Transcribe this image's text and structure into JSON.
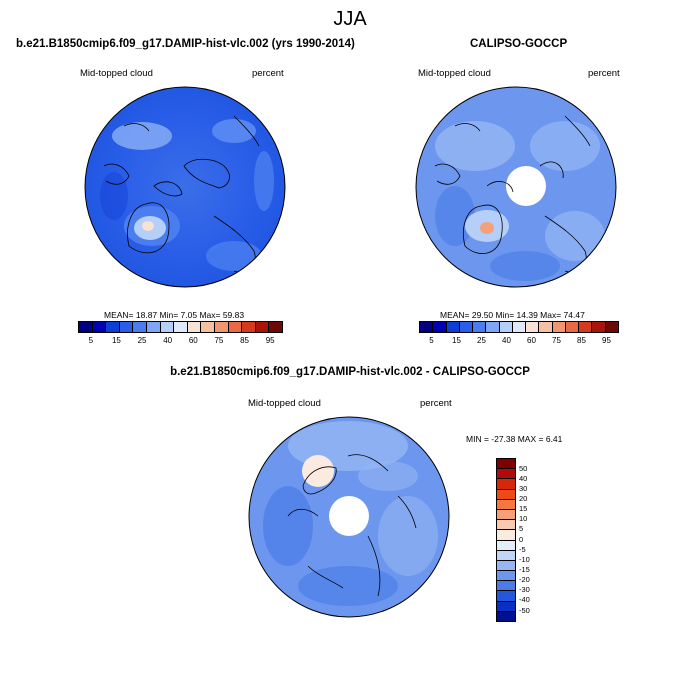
{
  "season": "JJA",
  "colors": {
    "abs": [
      "#000080",
      "#0000b3",
      "#0d3fd4",
      "#2a5ee8",
      "#4a7ef0",
      "#7fa6f5",
      "#b5cff8",
      "#dfe9fb",
      "#f7e2d4",
      "#f6c0a2",
      "#f29670",
      "#ea6945",
      "#d63a1e",
      "#a8140a",
      "#6e0a06"
    ],
    "diff": [
      "#800000",
      "#b00a0a",
      "#d8260a",
      "#ee4a17",
      "#f47840",
      "#f6a07a",
      "#f8cbb0",
      "#fbeae0",
      "#e4eefb",
      "#c1d6f7",
      "#95b6f3",
      "#6d97ee",
      "#4a7be8",
      "#2456df",
      "#0a2fc4",
      "#00108f",
      "#000070"
    ]
  },
  "panel1": {
    "title": "b.e21.B1850cmip6.f09_g17.DAMIP-hist-vlc.002 (yrs 1990-2014)",
    "variable": "Mid-topped cloud",
    "units": "percent",
    "stats": "MEAN=  18.87  Min=   7.05  Max=  59.83"
  },
  "panel2": {
    "title": "CALIPSO-GOCCP",
    "variable": "Mid-topped cloud",
    "units": "percent",
    "stats": "MEAN=  29.50  Min=  14.39  Max=  74.47"
  },
  "colorbar_ticks": [
    "5",
    "15",
    "25",
    "40",
    "60",
    "75",
    "85",
    "95"
  ],
  "panel3": {
    "title": "b.e21.B1850cmip6.f09_g17.DAMIP-hist-vlc.002 - CALIPSO-GOCCP",
    "variable": "Mid-topped cloud",
    "units": "percent",
    "stats": "MIN = -27.38 MAX =   6.41",
    "colorbar_labels": [
      "50",
      "40",
      "30",
      "20",
      "15",
      "10",
      "5",
      "0",
      "-5",
      "-10",
      "-15",
      "-20",
      "-30",
      "-40",
      "-50"
    ]
  }
}
